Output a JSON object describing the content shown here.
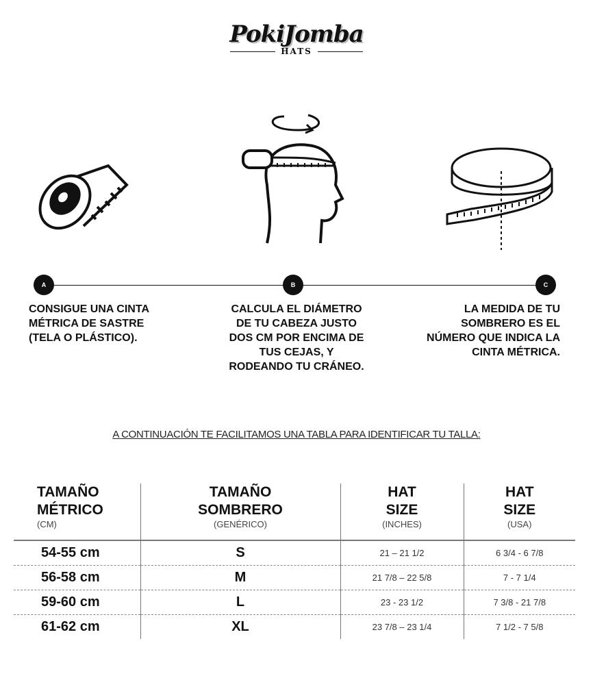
{
  "brand": {
    "name": "PokiJomba",
    "sub": "HATS"
  },
  "steps": [
    {
      "badge": "A",
      "lines": [
        "CONSIGUE UNA CINTA",
        "MÉTRICA DE SASTRE",
        "(TELA O PLÁSTICO)."
      ]
    },
    {
      "badge": "B",
      "lines": [
        "CALCULA EL DIÁMETRO",
        "DE TU CABEZA JUSTO",
        "DOS CM POR ENCIMA DE",
        "TUS CEJAS, Y",
        "RODEANDO TU CRÁNEO."
      ]
    },
    {
      "badge": "C",
      "lines": [
        "LA MEDIDA DE TU",
        "SOMBRERO ES EL",
        "NÚMERO QUE INDICA LA",
        "CINTA MÉTRICA."
      ]
    }
  ],
  "icons": [
    "measuring-tape-roll-icon",
    "head-measure-icon",
    "tape-loop-icon"
  ],
  "intro": "A CONTINUACIÓN TE FACILITAMOS UNA TABLA PARA IDENTIFICAR TU TALLA:",
  "table": {
    "headers": [
      {
        "l1": "TAMAÑO",
        "l2": "MÉTRICO",
        "sub": "(CM)"
      },
      {
        "l1": "TAMAÑO",
        "l2": "SOMBRERO",
        "sub": "(GENÉRICO)"
      },
      {
        "l1": "HAT",
        "l2": "SIZE",
        "sub": "(INCHES)"
      },
      {
        "l1": "HAT",
        "l2": "SIZE",
        "sub": "(USA)"
      }
    ],
    "rows": [
      [
        "54-55 cm",
        "S",
        "21 – 21 1/2",
        "6 3/4 - 6 7/8"
      ],
      [
        "56-58 cm",
        "M",
        "21 7/8 – 22 5/8",
        "7 - 7 1/4"
      ],
      [
        "59-60 cm",
        "L",
        "23 - 23 1/2",
        "7 3/8 - 21 7/8"
      ],
      [
        "61-62 cm",
        "XL",
        "23 7/8 – 23 1/4",
        "7 1/2 - 7 5/8"
      ]
    ]
  }
}
